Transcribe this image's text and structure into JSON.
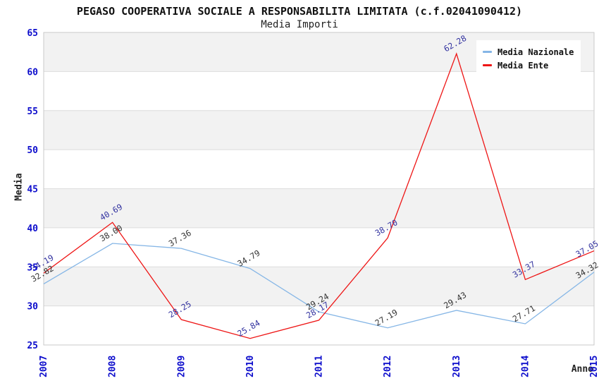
{
  "header": {
    "title": "PEGASO COOPERATIVA SOCIALE A RESPONSABILITA LIMITATA (c.f.02041090412)",
    "subtitle": "Media Importi"
  },
  "chart_data": {
    "type": "line",
    "x": [
      2007,
      2008,
      2009,
      2010,
      2011,
      2012,
      2013,
      2014,
      2015
    ],
    "series": [
      {
        "name": "Media Nazionale",
        "color": "#85b6e6",
        "label_color": "#333333",
        "values": [
          32.82,
          38.0,
          37.36,
          34.79,
          29.24,
          27.19,
          29.43,
          27.71,
          34.32
        ]
      },
      {
        "name": "Media Ente",
        "color": "#ee1515",
        "label_color": "#3333a0",
        "values": [
          34.19,
          40.69,
          28.25,
          25.84,
          28.17,
          38.7,
          62.28,
          33.37,
          37.05
        ]
      }
    ],
    "xlabel": "Anno",
    "ylabel": "Media",
    "ylim": [
      25,
      65
    ],
    "yticks": [
      25,
      30,
      35,
      40,
      45,
      50,
      55,
      60,
      65
    ],
    "legend_position": "top-right",
    "grid": "horizontal-bands",
    "band_colors": [
      "#ffffff",
      "#f2f2f2"
    ],
    "gridline_color": "#dcdcdc",
    "plot_border_color": "#c9c9c9",
    "axis_tick_color": "#0d0dcc",
    "data_label_rotation": -30
  }
}
